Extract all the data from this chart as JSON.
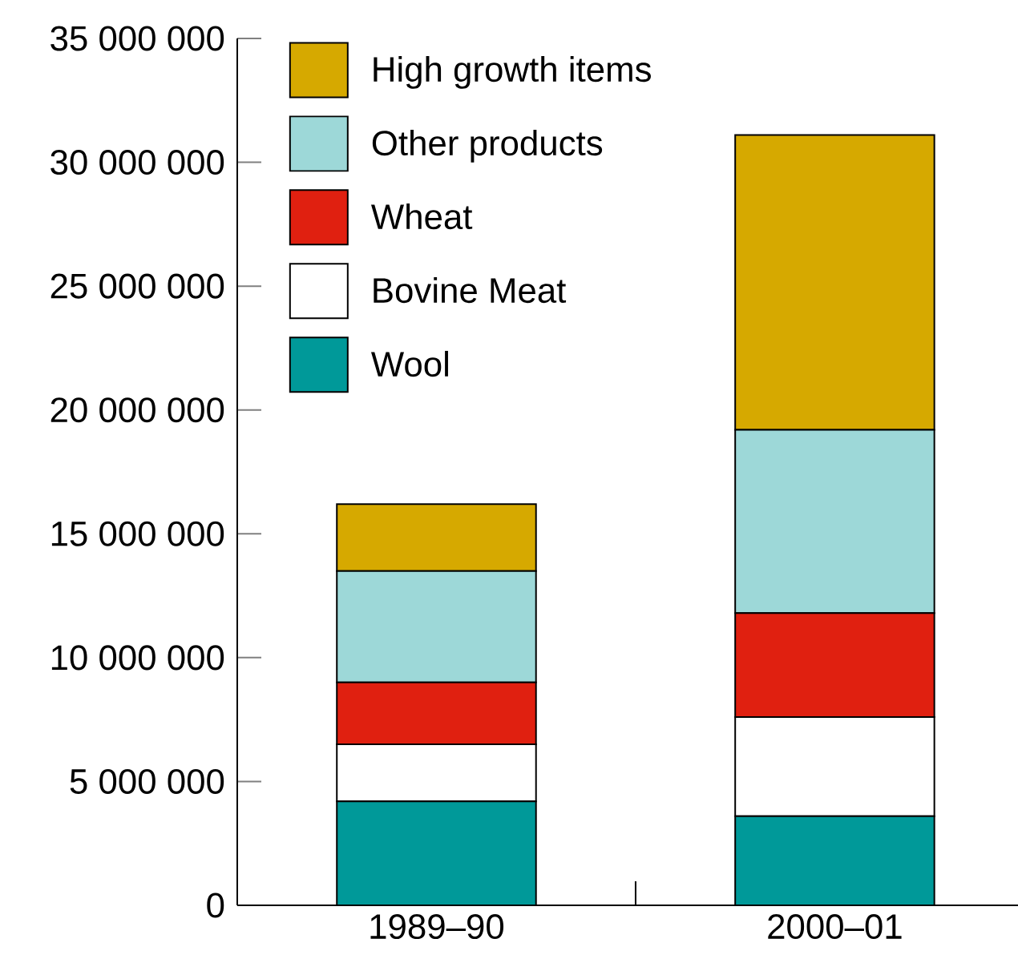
{
  "chart_data": {
    "type": "bar",
    "stacked": true,
    "categories": [
      "1989–90",
      "2000–01"
    ],
    "series": [
      {
        "name": "Wool",
        "color": "#009999",
        "values": [
          4200000,
          3600000
        ]
      },
      {
        "name": "Bovine Meat",
        "color": "#ffffff",
        "values": [
          2300000,
          4000000
        ]
      },
      {
        "name": "Wheat",
        "color": "#e02010",
        "values": [
          2500000,
          4200000
        ]
      },
      {
        "name": "Other products",
        "color": "#9dd8d8",
        "values": [
          4500000,
          7400000
        ]
      },
      {
        "name": "High growth items",
        "color": "#d6a900",
        "values": [
          2700000,
          11900000
        ]
      }
    ],
    "ylim": [
      0,
      35000000
    ],
    "yticks": [
      0,
      {
        "value": 5000000,
        "label": "5 000 000"
      },
      {
        "value": 10000000,
        "label": "10 000 000"
      },
      {
        "value": 15000000,
        "label": "15 000 000"
      },
      {
        "value": 20000000,
        "label": "20 000 000"
      },
      {
        "value": 25000000,
        "label": "25 000 000"
      },
      {
        "value": 30000000,
        "label": "30 000 000"
      },
      {
        "value": 35000000,
        "label": "35 000 000"
      }
    ],
    "legend": "top left"
  }
}
